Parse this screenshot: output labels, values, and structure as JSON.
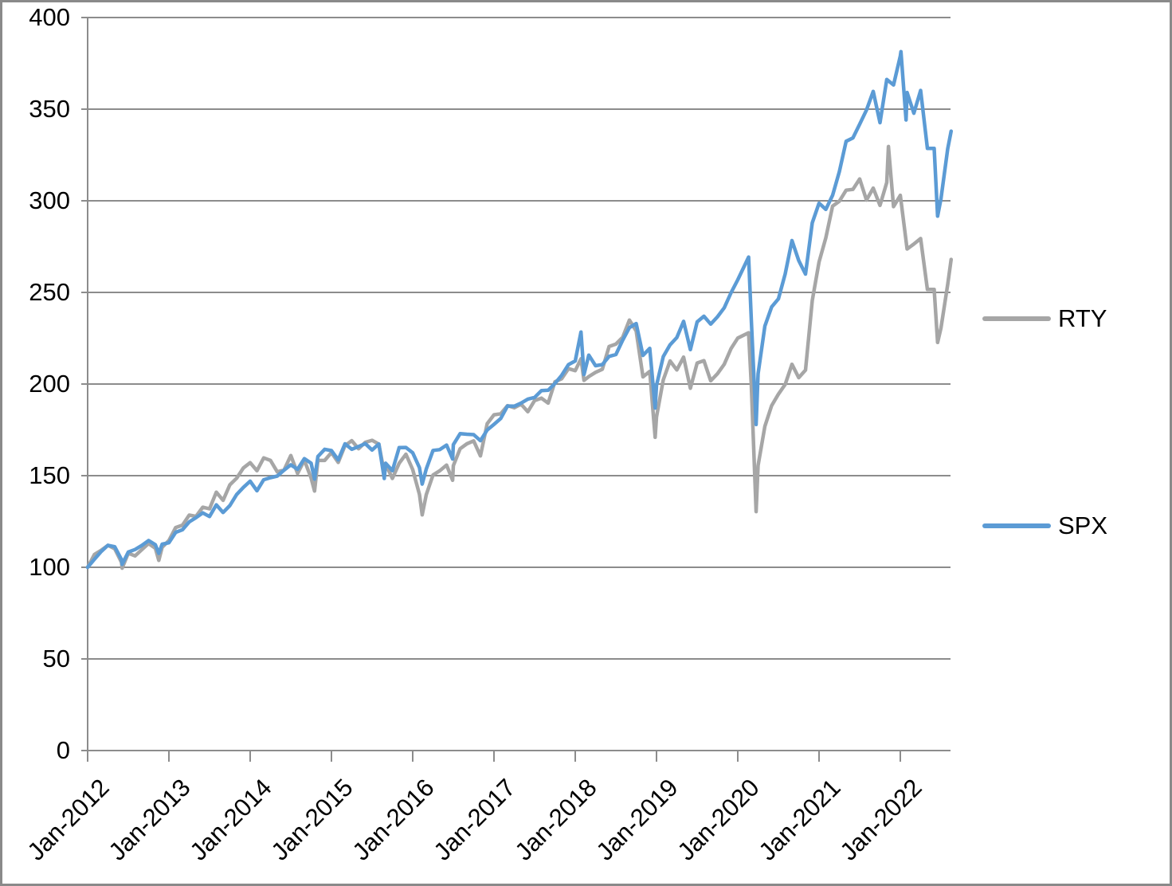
{
  "chart_data": {
    "type": "line",
    "title": "",
    "grid": true,
    "legend_position": "right",
    "x_axis": {
      "unit": "months-since-Jan-2012",
      "range_months": [
        0,
        127.5
      ],
      "ticks": [
        {
          "m": 0,
          "label": "Jan-2012"
        },
        {
          "m": 12,
          "label": "Jan-2013"
        },
        {
          "m": 24,
          "label": "Jan-2014"
        },
        {
          "m": 36,
          "label": "Jan-2015"
        },
        {
          "m": 48,
          "label": "Jan-2016"
        },
        {
          "m": 60,
          "label": "Jan-2017"
        },
        {
          "m": 72,
          "label": "Jan-2018"
        },
        {
          "m": 84,
          "label": "Jan-2019"
        },
        {
          "m": 96,
          "label": "Jan-2020"
        },
        {
          "m": 108,
          "label": "Jan-2021"
        },
        {
          "m": 120,
          "label": "Jan-2022"
        }
      ]
    },
    "y_axis": {
      "range": [
        0,
        400
      ],
      "ticks": [
        0,
        50,
        100,
        150,
        200,
        250,
        300,
        350,
        400
      ]
    },
    "colors": {
      "gridline": "#8C8C8C",
      "axis": "#8C8C8C",
      "frame": "#8A8A8A",
      "rty": "#A6A6A6",
      "spx": "#5B9BD5"
    },
    "series": [
      {
        "name": "RTY",
        "color": "#A6A6A6",
        "points": [
          [
            0,
            100
          ],
          [
            1,
            107.0
          ],
          [
            2,
            109.3
          ],
          [
            3,
            112.0
          ],
          [
            4,
            110.1
          ],
          [
            5,
            102.7
          ],
          [
            5.1,
            99.5
          ],
          [
            6,
            107.7
          ],
          [
            7,
            106.2
          ],
          [
            8,
            109.6
          ],
          [
            9,
            113.0
          ],
          [
            10,
            110.4
          ],
          [
            10.5,
            103.8
          ],
          [
            11,
            110.9
          ],
          [
            12,
            114.6
          ],
          [
            13,
            121.7
          ],
          [
            14,
            123.0
          ],
          [
            15,
            128.5
          ],
          [
            16,
            127.8
          ],
          [
            17,
            132.8
          ],
          [
            18,
            131.9
          ],
          [
            19,
            141.0
          ],
          [
            20,
            136.5
          ],
          [
            21,
            145.0
          ],
          [
            22,
            148.6
          ],
          [
            23,
            154.2
          ],
          [
            24,
            157.1
          ],
          [
            25,
            152.7
          ],
          [
            26,
            159.7
          ],
          [
            27,
            158.3
          ],
          [
            28,
            152.1
          ],
          [
            29,
            153.1
          ],
          [
            30,
            161.0
          ],
          [
            31,
            151.2
          ],
          [
            32,
            158.5
          ],
          [
            33,
            148.7
          ],
          [
            33.5,
            141.6
          ],
          [
            34,
            158.3
          ],
          [
            35,
            158.3
          ],
          [
            36,
            162.6
          ],
          [
            37,
            157.2
          ],
          [
            38,
            166.4
          ],
          [
            39,
            169.1
          ],
          [
            40,
            164.7
          ],
          [
            41,
            168.2
          ],
          [
            42,
            169.3
          ],
          [
            43,
            167.2
          ],
          [
            43.8,
            151.5
          ],
          [
            44,
            156.4
          ],
          [
            45,
            148.5
          ],
          [
            46,
            156.8
          ],
          [
            47,
            161.7
          ],
          [
            48,
            153.3
          ],
          [
            49,
            139.7
          ],
          [
            49.4,
            128.6
          ],
          [
            50,
            139.6
          ],
          [
            51,
            150.4
          ],
          [
            52,
            152.7
          ],
          [
            53,
            155.8
          ],
          [
            53.9,
            147.5
          ],
          [
            54,
            155.5
          ],
          [
            55,
            164.7
          ],
          [
            56,
            167.4
          ],
          [
            57,
            169.0
          ],
          [
            58,
            160.8
          ],
          [
            59,
            178.4
          ],
          [
            60,
            183.2
          ],
          [
            61,
            183.8
          ],
          [
            62,
            188.2
          ],
          [
            63,
            187.1
          ],
          [
            64,
            189.0
          ],
          [
            65,
            184.9
          ],
          [
            66,
            191.0
          ],
          [
            67,
            192.3
          ],
          [
            68,
            189.6
          ],
          [
            69,
            201.2
          ],
          [
            70,
            202.9
          ],
          [
            71,
            208.4
          ],
          [
            72,
            207.3
          ],
          [
            72.85,
            213.8
          ],
          [
            73.3,
            202.0
          ],
          [
            74,
            204.1
          ],
          [
            75,
            206.4
          ],
          [
            76,
            208.1
          ],
          [
            77,
            220.5
          ],
          [
            78,
            221.8
          ],
          [
            79,
            225.5
          ],
          [
            80,
            234.9
          ],
          [
            81,
            228.9
          ],
          [
            82,
            203.9
          ],
          [
            83,
            206.9
          ],
          [
            83.8,
            170.9
          ],
          [
            84,
            182.1
          ],
          [
            85,
            202.3
          ],
          [
            86,
            212.6
          ],
          [
            87,
            207.7
          ],
          [
            88,
            214.7
          ],
          [
            89,
            197.7
          ],
          [
            90,
            211.5
          ],
          [
            91,
            212.8
          ],
          [
            92,
            201.8
          ],
          [
            93,
            205.6
          ],
          [
            94,
            210.8
          ],
          [
            95,
            219.3
          ],
          [
            96,
            225.1
          ],
          [
            97.6,
            228.0
          ],
          [
            98,
            199.2
          ],
          [
            98.7,
            130.4
          ],
          [
            99,
            155.6
          ],
          [
            100,
            176.9
          ],
          [
            101,
            188.2
          ],
          [
            102,
            194.5
          ],
          [
            103,
            199.8
          ],
          [
            104,
            210.8
          ],
          [
            105,
            203.5
          ],
          [
            106,
            207.6
          ],
          [
            107,
            245.6
          ],
          [
            108,
            266.6
          ],
          [
            109,
            279.8
          ],
          [
            110,
            297.1
          ],
          [
            111,
            299.8
          ],
          [
            112,
            305.8
          ],
          [
            113,
            306.2
          ],
          [
            114,
            311.9
          ],
          [
            115,
            300.4
          ],
          [
            116,
            306.9
          ],
          [
            117,
            297.5
          ],
          [
            118,
            310.0
          ],
          [
            118.25,
            329.6
          ],
          [
            119,
            296.8
          ],
          [
            120,
            303.0
          ],
          [
            121,
            273.7
          ],
          [
            122,
            276.4
          ],
          [
            123,
            279.4
          ],
          [
            124,
            251.6
          ],
          [
            125,
            251.6
          ],
          [
            125.5,
            222.7
          ],
          [
            126,
            230.5
          ],
          [
            127,
            254.4
          ],
          [
            127.5,
            268.0
          ]
        ]
      },
      {
        "name": "SPX",
        "color": "#5B9BD5",
        "points": [
          [
            0,
            100
          ],
          [
            1,
            104.4
          ],
          [
            2,
            108.6
          ],
          [
            3,
            112.0
          ],
          [
            4,
            111.2
          ],
          [
            5,
            104.2
          ],
          [
            5.1,
            101.6
          ],
          [
            6,
            108.3
          ],
          [
            7,
            109.7
          ],
          [
            8,
            111.9
          ],
          [
            9,
            114.6
          ],
          [
            10,
            112.3
          ],
          [
            10.5,
            107.6
          ],
          [
            11,
            112.6
          ],
          [
            12,
            113.4
          ],
          [
            13,
            119.1
          ],
          [
            14,
            120.5
          ],
          [
            15,
            124.8
          ],
          [
            16,
            127.1
          ],
          [
            17,
            129.7
          ],
          [
            18,
            127.7
          ],
          [
            19,
            134.1
          ],
          [
            20,
            129.9
          ],
          [
            21,
            133.7
          ],
          [
            22,
            139.7
          ],
          [
            23,
            143.6
          ],
          [
            24,
            147.0
          ],
          [
            25,
            141.8
          ],
          [
            26,
            147.8
          ],
          [
            27,
            148.9
          ],
          [
            28,
            149.8
          ],
          [
            29,
            153.0
          ],
          [
            30,
            155.9
          ],
          [
            31,
            153.5
          ],
          [
            32,
            159.3
          ],
          [
            33,
            156.8
          ],
          [
            33.5,
            148.1
          ],
          [
            34,
            160.5
          ],
          [
            35,
            164.4
          ],
          [
            36,
            163.7
          ],
          [
            37,
            158.6
          ],
          [
            38,
            167.4
          ],
          [
            39,
            164.4
          ],
          [
            40,
            165.9
          ],
          [
            41,
            167.5
          ],
          [
            42,
            164.0
          ],
          [
            43,
            167.3
          ],
          [
            43.8,
            148.5
          ],
          [
            44,
            156.8
          ],
          [
            45,
            152.7
          ],
          [
            46,
            165.3
          ],
          [
            47,
            165.4
          ],
          [
            48,
            162.5
          ],
          [
            49,
            154.3
          ],
          [
            49.4,
            145.4
          ],
          [
            50,
            153.6
          ],
          [
            51,
            163.8
          ],
          [
            52,
            164.2
          ],
          [
            53,
            166.7
          ],
          [
            53.9,
            159.1
          ],
          [
            54,
            166.9
          ],
          [
            55,
            172.9
          ],
          [
            56,
            172.6
          ],
          [
            57,
            172.4
          ],
          [
            58,
            169.1
          ],
          [
            59,
            174.9
          ],
          [
            60,
            178.0
          ],
          [
            61,
            181.2
          ],
          [
            62,
            188.0
          ],
          [
            63,
            187.9
          ],
          [
            64,
            189.6
          ],
          [
            65,
            191.8
          ],
          [
            66,
            192.7
          ],
          [
            67,
            196.4
          ],
          [
            68,
            196.6
          ],
          [
            69,
            200.3
          ],
          [
            70,
            204.8
          ],
          [
            71,
            210.6
          ],
          [
            72,
            212.6
          ],
          [
            72.85,
            228.4
          ],
          [
            73.3,
            205.2
          ],
          [
            74,
            215.8
          ],
          [
            75,
            210.0
          ],
          [
            76,
            210.6
          ],
          [
            77,
            215.1
          ],
          [
            78,
            216.1
          ],
          [
            79,
            223.9
          ],
          [
            80,
            230.8
          ],
          [
            81,
            233.0
          ],
          [
            82,
            215.6
          ],
          [
            83,
            219.5
          ],
          [
            83.8,
            186.9
          ],
          [
            84,
            199.3
          ],
          [
            85,
            215.0
          ],
          [
            86,
            221.4
          ],
          [
            87,
            225.4
          ],
          [
            88,
            234.2
          ],
          [
            89,
            218.8
          ],
          [
            90,
            233.9
          ],
          [
            91,
            237.0
          ],
          [
            92,
            232.7
          ],
          [
            93,
            236.7
          ],
          [
            94,
            241.6
          ],
          [
            95,
            249.8
          ],
          [
            96,
            256.9
          ],
          [
            97.6,
            269.3
          ],
          [
            98,
            234.9
          ],
          [
            98.7,
            177.9
          ],
          [
            99,
            205.6
          ],
          [
            100,
            231.6
          ],
          [
            101,
            242.1
          ],
          [
            102,
            246.5
          ],
          [
            103,
            260.1
          ],
          [
            104,
            278.3
          ],
          [
            105,
            267.4
          ],
          [
            106,
            260.0
          ],
          [
            107,
            288.0
          ],
          [
            108,
            298.7
          ],
          [
            109,
            295.3
          ],
          [
            110,
            303.0
          ],
          [
            111,
            315.9
          ],
          [
            112,
            332.5
          ],
          [
            113,
            334.3
          ],
          [
            114,
            341.8
          ],
          [
            115,
            349.5
          ],
          [
            116,
            359.7
          ],
          [
            117,
            342.6
          ],
          [
            118,
            366.2
          ],
          [
            119,
            363.2
          ],
          [
            120,
            379.0
          ],
          [
            120.1,
            381.4
          ],
          [
            120.85,
            344.1
          ],
          [
            121,
            359.1
          ],
          [
            122,
            347.8
          ],
          [
            123,
            360.2
          ],
          [
            124,
            328.6
          ],
          [
            125,
            328.6
          ],
          [
            125.5,
            291.6
          ],
          [
            126,
            301.0
          ],
          [
            127,
            328.4
          ],
          [
            127.5,
            338.0
          ]
        ]
      }
    ]
  },
  "legend": {
    "rty_label": "RTY",
    "spx_label": "SPX"
  }
}
